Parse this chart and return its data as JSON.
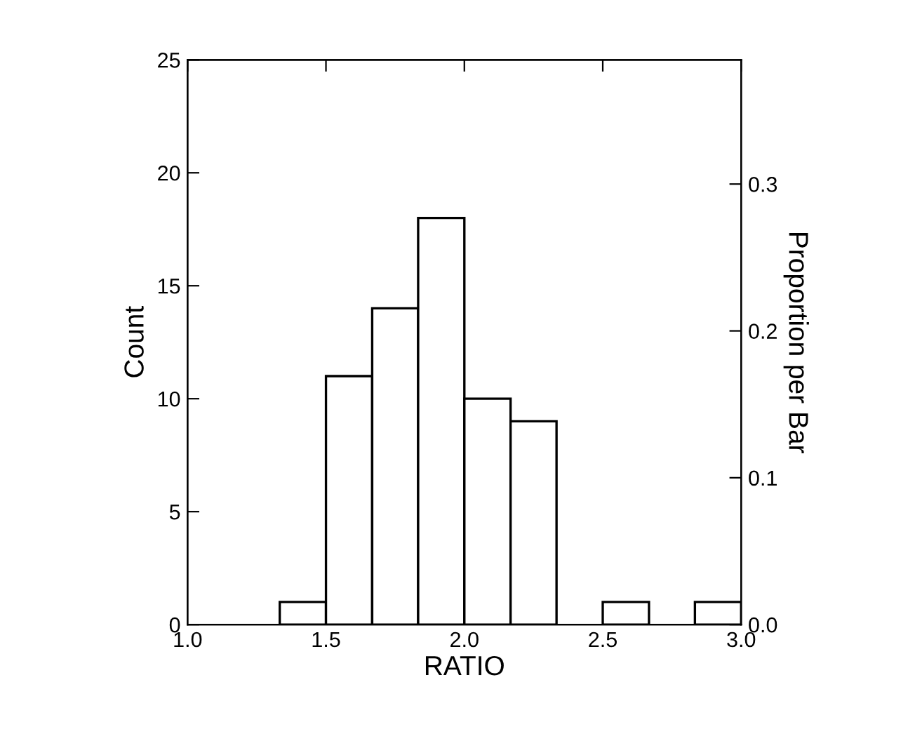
{
  "chart_data": {
    "type": "histogram",
    "xlabel": "RATIO",
    "ylabel": "Count",
    "y2label": "Proportion per Bar",
    "bins": [
      1.333,
      1.5,
      1.667,
      1.833,
      2.0,
      2.167,
      2.333,
      2.5,
      2.667,
      2.833,
      3.0
    ],
    "values": [
      1,
      11,
      14,
      18,
      10,
      9,
      0,
      1,
      0,
      1
    ],
    "color": "#ffffff",
    "xlim": [
      1.0,
      3.0
    ],
    "xticks": [
      {
        "value": 1.0,
        "label": "1.0"
      },
      {
        "value": 1.5,
        "label": "1.5"
      },
      {
        "value": 2.0,
        "label": "2.0"
      },
      {
        "value": 2.5,
        "label": "2.5"
      },
      {
        "value": 3.0,
        "label": "3.0"
      }
    ],
    "ylim": [
      0,
      25
    ],
    "yticks": [
      0,
      5,
      10,
      15,
      20,
      25
    ],
    "y2lim": [
      0,
      0.3846
    ],
    "y2ticks": [
      {
        "value": 0.0,
        "label": "0.0"
      },
      0.1,
      0.2,
      0.3
    ],
    "grid": false,
    "legend": false
  }
}
